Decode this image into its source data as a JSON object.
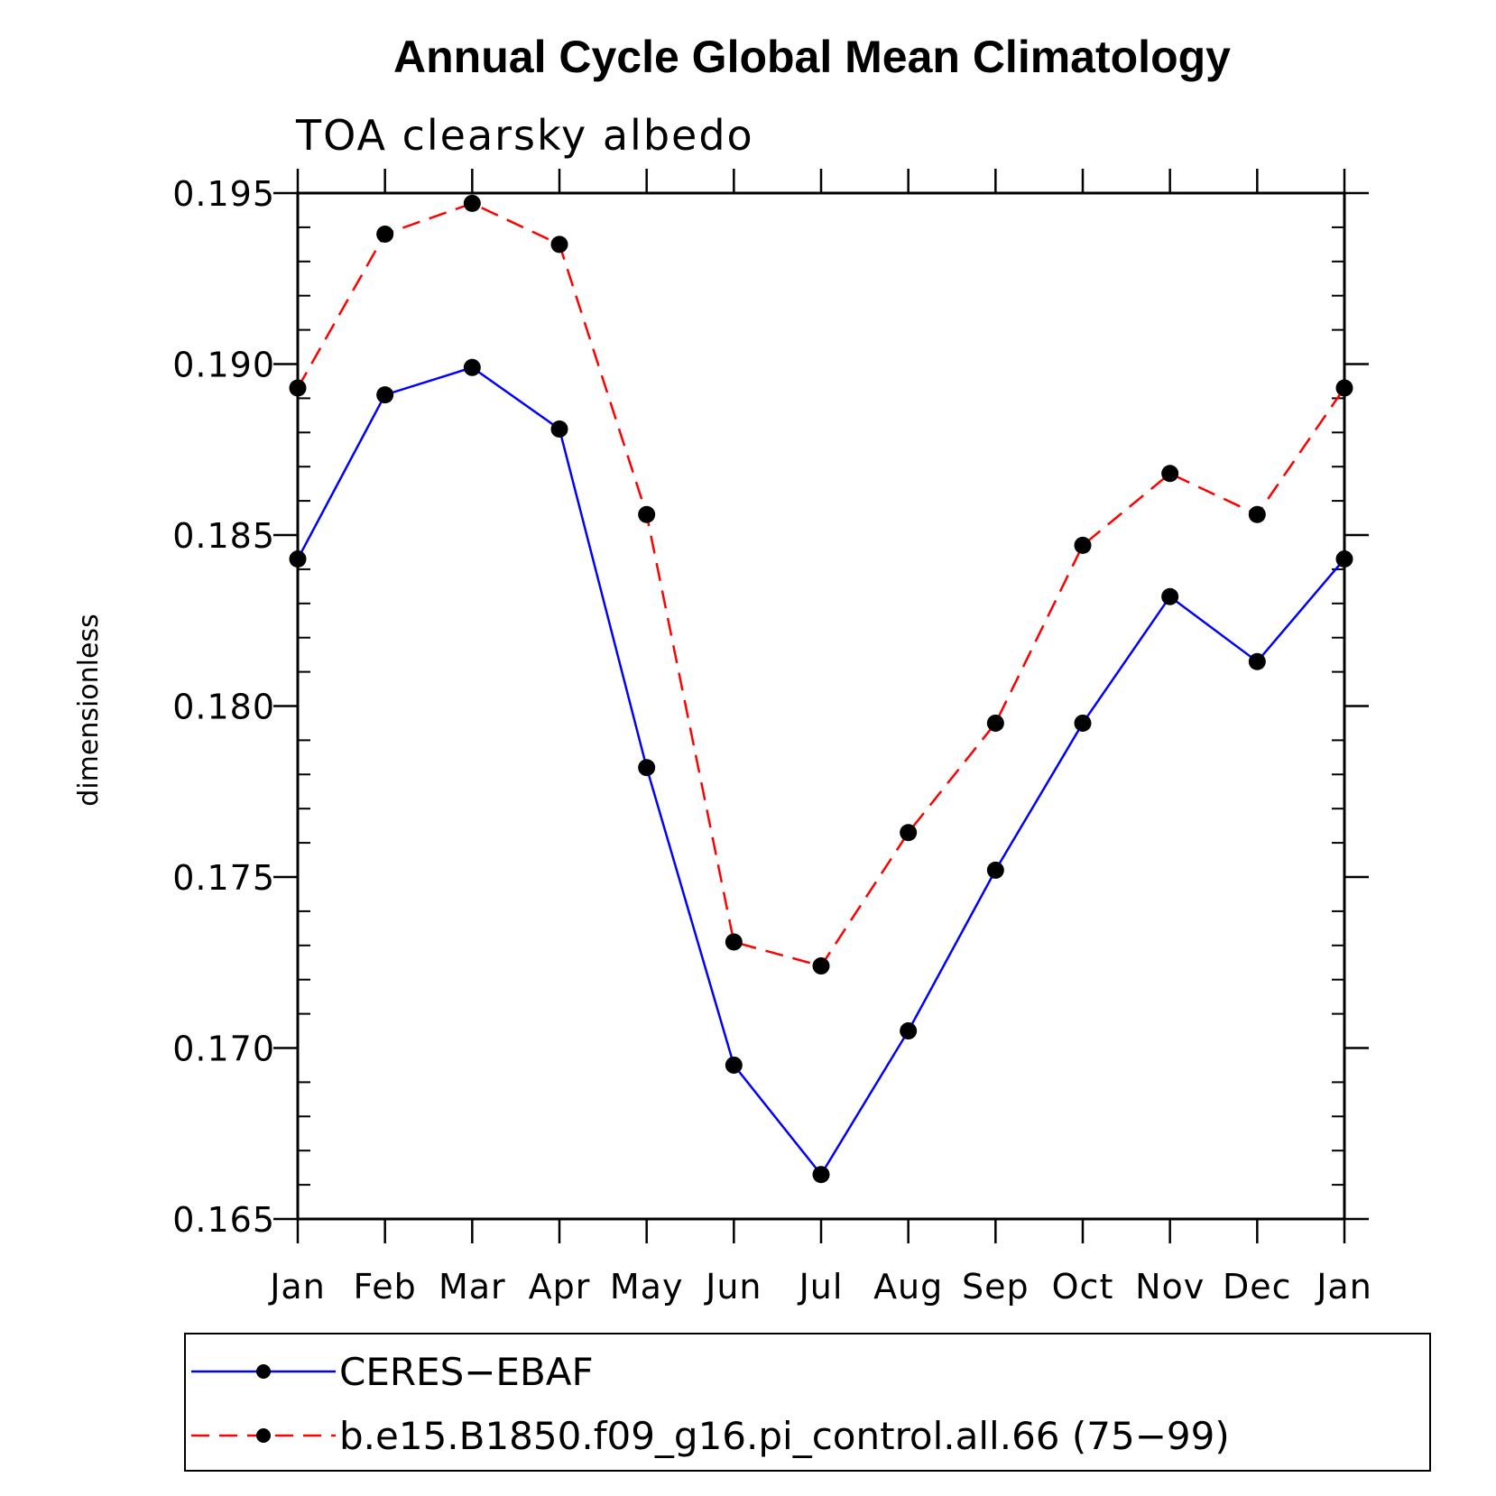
{
  "chart_data": {
    "type": "line",
    "title": "Annual Cycle Global Mean Climatology",
    "subtitle": "TOA clearsky albedo",
    "xlabel": "",
    "ylabel": "dimensionless",
    "categories": [
      "Jan",
      "Feb",
      "Mar",
      "Apr",
      "May",
      "Jun",
      "Jul",
      "Aug",
      "Sep",
      "Oct",
      "Nov",
      "Dec",
      "Jan"
    ],
    "ylim": [
      0.165,
      0.195
    ],
    "yticks": [
      "0.165",
      "0.170",
      "0.175",
      "0.180",
      "0.185",
      "0.190",
      "0.195"
    ],
    "grid": false,
    "legend_position": "bottom",
    "series": [
      {
        "name": "CERES−EBAF",
        "color": "#0000ff",
        "dash": "solid",
        "marker": "filled-circle",
        "values": [
          0.1843,
          0.1891,
          0.1899,
          0.1881,
          0.1782,
          0.1695,
          0.1663,
          0.1705,
          0.1752,
          0.1795,
          0.1832,
          0.1813,
          0.1843
        ]
      },
      {
        "name": "b.e15.B1850.f09_g16.pi_control.all.66 (75−99)",
        "color": "#ff0000",
        "dash": "dashed",
        "marker": "filled-circle",
        "values": [
          0.1893,
          0.1938,
          0.1947,
          0.1935,
          0.1856,
          0.1731,
          0.1724,
          0.1763,
          0.1795,
          0.1847,
          0.1868,
          0.1856,
          0.1893
        ]
      }
    ]
  }
}
